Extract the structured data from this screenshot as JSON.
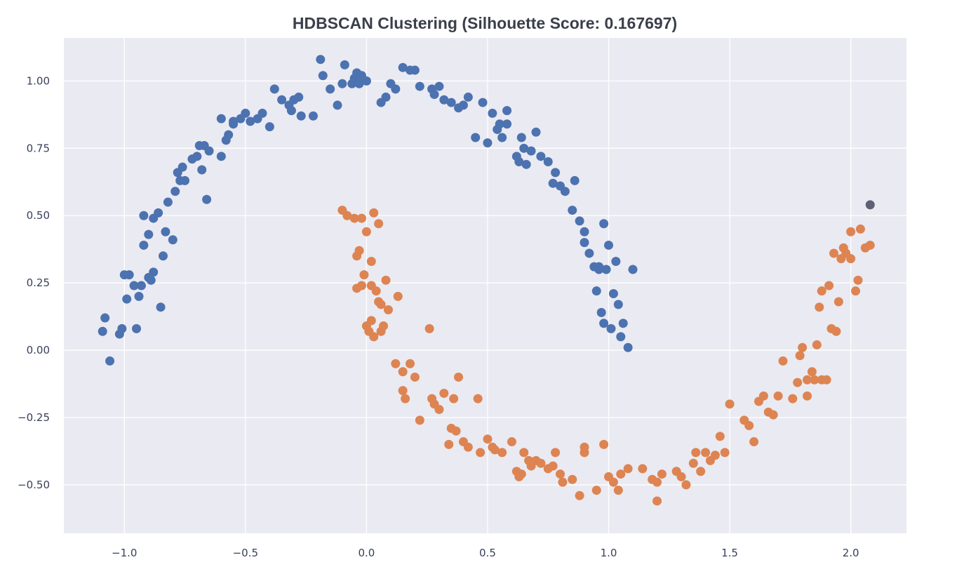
{
  "chart_data": {
    "type": "scatter",
    "title": "HDBSCAN Clustering (Silhouette Score: 0.167697)",
    "xlabel": "",
    "ylabel": "",
    "xlim": [
      -1.25,
      2.23
    ],
    "ylim": [
      -0.68,
      1.16
    ],
    "xticks": [
      -1.0,
      -0.5,
      0.0,
      0.5,
      1.0,
      1.5,
      2.0
    ],
    "xtick_labels": [
      "−1.0",
      "−0.5",
      "0.0",
      "0.5",
      "1.0",
      "1.5",
      "2.0"
    ],
    "yticks": [
      1.0,
      0.75,
      0.5,
      0.25,
      0.0,
      -0.25,
      -0.5
    ],
    "ytick_labels": [
      "1.00",
      "0.75",
      "0.50",
      "0.25",
      "0.00",
      "−0.25",
      "−0.50"
    ],
    "grid": true,
    "background": "#eaeaf2",
    "series": [
      {
        "color": "#4c72b0",
        "points": [
          [
            -1.09,
            0.07
          ],
          [
            -1.08,
            0.12
          ],
          [
            -1.06,
            -0.04
          ],
          [
            -1.02,
            0.06
          ],
          [
            -1.01,
            0.08
          ],
          [
            -1.0,
            0.28
          ],
          [
            -0.99,
            0.19
          ],
          [
            -0.98,
            0.28
          ],
          [
            -0.95,
            0.08
          ],
          [
            -0.94,
            0.2
          ],
          [
            -0.93,
            0.24
          ],
          [
            -0.92,
            0.39
          ],
          [
            -0.92,
            0.5
          ],
          [
            -0.9,
            0.43
          ],
          [
            -0.9,
            0.27
          ],
          [
            -0.89,
            0.26
          ],
          [
            -0.88,
            0.29
          ],
          [
            -0.88,
            0.49
          ],
          [
            -0.86,
            0.51
          ],
          [
            -0.85,
            0.16
          ],
          [
            -0.84,
            0.35
          ],
          [
            -0.83,
            0.44
          ],
          [
            -0.82,
            0.55
          ],
          [
            -0.8,
            0.41
          ],
          [
            -0.79,
            0.59
          ],
          [
            -0.78,
            0.66
          ],
          [
            -0.77,
            0.63
          ],
          [
            -0.76,
            0.68
          ],
          [
            -0.75,
            0.63
          ],
          [
            -0.72,
            0.71
          ],
          [
            -0.7,
            0.72
          ],
          [
            -0.69,
            0.76
          ],
          [
            -0.68,
            0.67
          ],
          [
            -0.67,
            0.76
          ],
          [
            -0.66,
            0.56
          ],
          [
            -0.65,
            0.74
          ],
          [
            -0.6,
            0.72
          ],
          [
            -0.6,
            0.86
          ],
          [
            -0.58,
            0.78
          ],
          [
            -0.57,
            0.8
          ],
          [
            -0.55,
            0.84
          ],
          [
            -0.52,
            0.86
          ],
          [
            -0.5,
            0.88
          ],
          [
            -0.48,
            0.85
          ],
          [
            -0.45,
            0.86
          ],
          [
            -0.43,
            0.88
          ],
          [
            -0.4,
            0.83
          ],
          [
            -0.38,
            0.97
          ],
          [
            -0.35,
            0.93
          ],
          [
            -0.32,
            0.91
          ],
          [
            -0.31,
            0.89
          ],
          [
            -0.3,
            0.93
          ],
          [
            -0.28,
            0.94
          ],
          [
            -0.27,
            0.87
          ],
          [
            -0.22,
            0.87
          ],
          [
            -0.19,
            1.08
          ],
          [
            -0.18,
            1.02
          ],
          [
            -0.15,
            0.97
          ],
          [
            -0.12,
            0.91
          ],
          [
            -0.1,
            0.99
          ],
          [
            -0.09,
            1.06
          ],
          [
            -0.06,
            0.99
          ],
          [
            -0.05,
            1.01
          ],
          [
            -0.04,
            1.03
          ],
          [
            -0.03,
            0.99
          ],
          [
            -0.02,
            1.02
          ],
          [
            0.0,
            1.0
          ],
          [
            0.06,
            0.92
          ],
          [
            0.08,
            0.94
          ],
          [
            0.1,
            0.99
          ],
          [
            0.12,
            0.97
          ],
          [
            0.15,
            1.05
          ],
          [
            0.18,
            1.04
          ],
          [
            0.2,
            1.04
          ],
          [
            0.22,
            0.98
          ],
          [
            0.27,
            0.97
          ],
          [
            0.28,
            0.95
          ],
          [
            0.3,
            0.98
          ],
          [
            0.32,
            0.93
          ],
          [
            0.35,
            0.92
          ],
          [
            0.38,
            0.9
          ],
          [
            0.4,
            0.91
          ],
          [
            0.42,
            0.94
          ],
          [
            0.45,
            0.79
          ],
          [
            0.48,
            0.92
          ],
          [
            0.5,
            0.77
          ],
          [
            0.52,
            0.88
          ],
          [
            0.54,
            0.82
          ],
          [
            0.55,
            0.84
          ],
          [
            0.56,
            0.79
          ],
          [
            0.58,
            0.89
          ],
          [
            0.62,
            0.72
          ],
          [
            0.63,
            0.7
          ],
          [
            0.64,
            0.79
          ],
          [
            0.65,
            0.75
          ],
          [
            0.66,
            0.69
          ],
          [
            0.68,
            0.74
          ],
          [
            0.7,
            0.81
          ],
          [
            0.72,
            0.72
          ],
          [
            0.75,
            0.7
          ],
          [
            0.77,
            0.62
          ],
          [
            0.78,
            0.66
          ],
          [
            0.8,
            0.61
          ],
          [
            0.82,
            0.59
          ],
          [
            0.85,
            0.52
          ],
          [
            0.86,
            0.63
          ],
          [
            0.88,
            0.48
          ],
          [
            0.9,
            0.44
          ],
          [
            0.92,
            0.36
          ],
          [
            0.94,
            0.31
          ],
          [
            0.95,
            0.22
          ],
          [
            0.96,
            0.3
          ],
          [
            0.97,
            0.14
          ],
          [
            0.98,
            0.47
          ],
          [
            0.99,
            0.3
          ],
          [
            1.0,
            0.39
          ],
          [
            1.01,
            0.08
          ],
          [
            1.02,
            0.21
          ],
          [
            1.03,
            0.33
          ],
          [
            1.04,
            0.17
          ],
          [
            1.05,
            0.05
          ],
          [
            1.06,
            0.1
          ],
          [
            1.08,
            0.01
          ],
          [
            1.1,
            0.3
          ],
          [
            0.96,
            0.31
          ],
          [
            0.98,
            0.1
          ],
          [
            0.9,
            0.4
          ],
          [
            -0.96,
            0.24
          ],
          [
            -0.55,
            0.85
          ],
          [
            0.58,
            0.84
          ]
        ]
      },
      {
        "color": "#dd8452",
        "points": [
          [
            -0.1,
            0.52
          ],
          [
            -0.08,
            0.5
          ],
          [
            -0.05,
            0.49
          ],
          [
            -0.02,
            0.49
          ],
          [
            0.0,
            0.44
          ],
          [
            0.03,
            0.51
          ],
          [
            0.05,
            0.47
          ],
          [
            -0.03,
            0.37
          ],
          [
            -0.04,
            0.35
          ],
          [
            0.02,
            0.33
          ],
          [
            -0.01,
            0.28
          ],
          [
            0.02,
            0.24
          ],
          [
            0.04,
            0.22
          ],
          [
            0.05,
            0.18
          ],
          [
            0.06,
            0.17
          ],
          [
            0.08,
            0.26
          ],
          [
            0.09,
            0.15
          ],
          [
            0.13,
            0.2
          ],
          [
            -0.02,
            0.24
          ],
          [
            -0.04,
            0.23
          ],
          [
            0.0,
            0.09
          ],
          [
            0.01,
            0.07
          ],
          [
            0.02,
            0.11
          ],
          [
            0.03,
            0.05
          ],
          [
            0.06,
            0.07
          ],
          [
            0.07,
            0.09
          ],
          [
            0.12,
            -0.05
          ],
          [
            0.15,
            -0.08
          ],
          [
            0.15,
            -0.15
          ],
          [
            0.16,
            -0.18
          ],
          [
            0.18,
            -0.05
          ],
          [
            0.2,
            -0.1
          ],
          [
            0.22,
            -0.26
          ],
          [
            0.26,
            0.08
          ],
          [
            0.27,
            -0.18
          ],
          [
            0.28,
            -0.2
          ],
          [
            0.3,
            -0.22
          ],
          [
            0.32,
            -0.16
          ],
          [
            0.34,
            -0.35
          ],
          [
            0.35,
            -0.29
          ],
          [
            0.36,
            -0.18
          ],
          [
            0.37,
            -0.3
          ],
          [
            0.38,
            -0.1
          ],
          [
            0.4,
            -0.34
          ],
          [
            0.42,
            -0.36
          ],
          [
            0.46,
            -0.18
          ],
          [
            0.47,
            -0.38
          ],
          [
            0.5,
            -0.33
          ],
          [
            0.52,
            -0.36
          ],
          [
            0.53,
            -0.37
          ],
          [
            0.56,
            -0.38
          ],
          [
            0.6,
            -0.34
          ],
          [
            0.62,
            -0.45
          ],
          [
            0.63,
            -0.47
          ],
          [
            0.64,
            -0.46
          ],
          [
            0.65,
            -0.38
          ],
          [
            0.67,
            -0.41
          ],
          [
            0.68,
            -0.43
          ],
          [
            0.7,
            -0.41
          ],
          [
            0.72,
            -0.42
          ],
          [
            0.75,
            -0.44
          ],
          [
            0.77,
            -0.43
          ],
          [
            0.78,
            -0.38
          ],
          [
            0.8,
            -0.46
          ],
          [
            0.81,
            -0.49
          ],
          [
            0.85,
            -0.48
          ],
          [
            0.88,
            -0.54
          ],
          [
            0.9,
            -0.38
          ],
          [
            0.9,
            -0.36
          ],
          [
            0.95,
            -0.52
          ],
          [
            0.98,
            -0.35
          ],
          [
            1.0,
            -0.47
          ],
          [
            1.02,
            -0.49
          ],
          [
            1.04,
            -0.52
          ],
          [
            1.05,
            -0.46
          ],
          [
            1.08,
            -0.44
          ],
          [
            1.14,
            -0.44
          ],
          [
            1.18,
            -0.48
          ],
          [
            1.2,
            -0.49
          ],
          [
            1.2,
            -0.56
          ],
          [
            1.22,
            -0.46
          ],
          [
            1.28,
            -0.45
          ],
          [
            1.3,
            -0.47
          ],
          [
            1.32,
            -0.5
          ],
          [
            1.35,
            -0.42
          ],
          [
            1.36,
            -0.38
          ],
          [
            1.38,
            -0.45
          ],
          [
            1.4,
            -0.38
          ],
          [
            1.42,
            -0.41
          ],
          [
            1.44,
            -0.39
          ],
          [
            1.46,
            -0.32
          ],
          [
            1.48,
            -0.38
          ],
          [
            1.5,
            -0.2
          ],
          [
            1.56,
            -0.26
          ],
          [
            1.58,
            -0.28
          ],
          [
            1.6,
            -0.34
          ],
          [
            1.62,
            -0.19
          ],
          [
            1.64,
            -0.17
          ],
          [
            1.66,
            -0.23
          ],
          [
            1.68,
            -0.24
          ],
          [
            1.7,
            -0.17
          ],
          [
            1.72,
            -0.04
          ],
          [
            1.76,
            -0.18
          ],
          [
            1.78,
            -0.12
          ],
          [
            1.79,
            -0.02
          ],
          [
            1.8,
            0.01
          ],
          [
            1.82,
            -0.17
          ],
          [
            1.84,
            -0.08
          ],
          [
            1.85,
            -0.11
          ],
          [
            1.86,
            0.02
          ],
          [
            1.87,
            0.16
          ],
          [
            1.88,
            0.22
          ],
          [
            1.9,
            -0.11
          ],
          [
            1.91,
            0.24
          ],
          [
            1.92,
            0.08
          ],
          [
            1.93,
            0.36
          ],
          [
            1.94,
            0.07
          ],
          [
            1.95,
            0.18
          ],
          [
            1.96,
            0.34
          ],
          [
            1.97,
            0.38
          ],
          [
            1.98,
            0.36
          ],
          [
            2.0,
            0.44
          ],
          [
            2.0,
            0.34
          ],
          [
            2.02,
            0.22
          ],
          [
            2.03,
            0.26
          ],
          [
            2.04,
            0.45
          ],
          [
            2.06,
            0.38
          ],
          [
            2.08,
            0.39
          ],
          [
            1.82,
            -0.11
          ],
          [
            1.88,
            -0.11
          ]
        ]
      },
      {
        "color": "#5d6173",
        "points": [
          [
            2.08,
            0.54
          ]
        ]
      }
    ]
  }
}
